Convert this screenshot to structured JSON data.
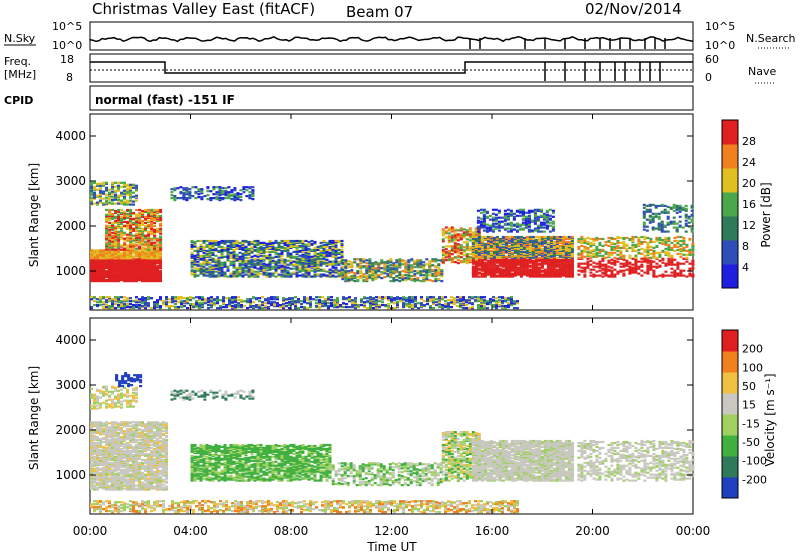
{
  "header": {
    "title": "Christmas Valley East (fitACF)",
    "beam": "Beam 07",
    "date": "02/Nov/2014"
  },
  "top_panels": {
    "nsky_label": "N.Sky",
    "nsky_ticks": [
      "10^5",
      "10^0"
    ],
    "nsearch_label": "N.Search",
    "nsearch_ticks": [
      "10^5",
      "10^0"
    ],
    "freq_label": "Freq.",
    "freq_unit": "[MHz]",
    "freq_ticks": [
      "18",
      "8"
    ],
    "nave_label": "Nave",
    "nave_ticks": [
      "60",
      "0"
    ],
    "cpid_label": "CPID",
    "cpid_value": "normal (fast) -151 IF"
  },
  "chart_data": [
    {
      "type": "heatmap",
      "name": "power",
      "ylabel": "Slant Range [km]",
      "yticks": [
        "4000",
        "3000",
        "2000",
        "1000"
      ],
      "xticks": [
        "00:00",
        "04:00",
        "08:00",
        "12:00",
        "16:00",
        "20:00",
        "00:00"
      ],
      "colorbar_label": "Power [dB]",
      "colorbar_ticks": [
        "28",
        "24",
        "20",
        "16",
        "12",
        "8",
        "4"
      ],
      "colors": [
        "#1f1fe0",
        "#2e4fb8",
        "#2e7a5a",
        "#4aa84a",
        "#e0c020",
        "#f08020",
        "#e02020"
      ]
    },
    {
      "type": "heatmap",
      "name": "velocity",
      "ylabel": "Slant Range [km]",
      "yticks": [
        "4000",
        "3000",
        "2000",
        "1000"
      ],
      "xticks": [
        "00:00",
        "04:00",
        "08:00",
        "12:00",
        "16:00",
        "20:00",
        "00:00"
      ],
      "xlabel": "Time UT",
      "colorbar_label": "Velocity [m s⁻¹]",
      "colorbar_ticks": [
        "200",
        "100",
        "50",
        "15",
        "-15",
        "-50",
        "-100",
        "-200"
      ],
      "colors": [
        "#2040c0",
        "#2e7a5a",
        "#40b040",
        "#a0d060",
        "#c8c8c0",
        "#f0c040",
        "#f08020",
        "#e02020"
      ]
    }
  ]
}
